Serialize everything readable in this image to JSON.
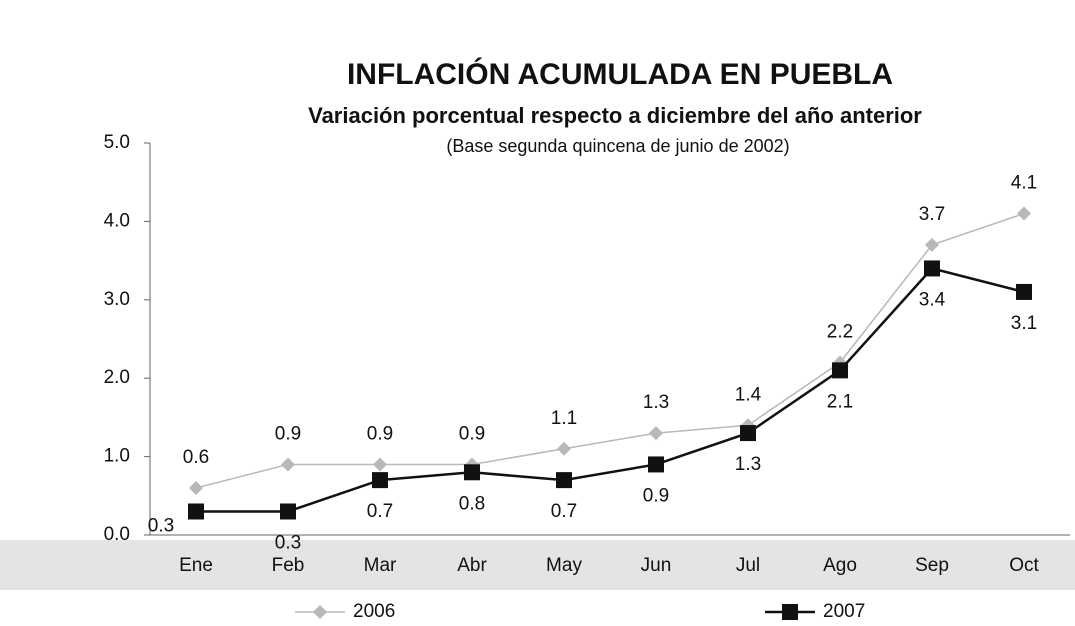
{
  "chart_data": {
    "type": "line",
    "title": "INFLACIÓN ACUMULADA EN PUEBLA",
    "subtitle": "Variación porcentual respecto a diciembre del año anterior",
    "note": "(Base segunda quincena de junio de 2002)",
    "categories": [
      "Ene",
      "Feb",
      "Mar",
      "Abr",
      "May",
      "Jun",
      "Jul",
      "Ago",
      "Sep",
      "Oct"
    ],
    "series": [
      {
        "name": "2006",
        "color": "#b8b8b8",
        "marker": "diamond",
        "values": [
          0.6,
          0.9,
          0.9,
          0.9,
          1.1,
          1.3,
          1.4,
          2.2,
          3.7,
          4.1
        ]
      },
      {
        "name": "2007",
        "color": "#111111",
        "marker": "square",
        "values": [
          0.3,
          0.3,
          0.7,
          0.8,
          0.7,
          0.9,
          1.3,
          2.1,
          3.4,
          3.1
        ]
      }
    ],
    "ylim": [
      0,
      5
    ],
    "yticks": [
      {
        "value": 0,
        "label": "0.0"
      },
      {
        "value": 1,
        "label": "1.0"
      },
      {
        "value": 2,
        "label": "2.0"
      },
      {
        "value": 3,
        "label": "3.0"
      },
      {
        "value": 4,
        "label": "4.0"
      },
      {
        "value": 5,
        "label": "5.0"
      }
    ],
    "grid": false
  }
}
